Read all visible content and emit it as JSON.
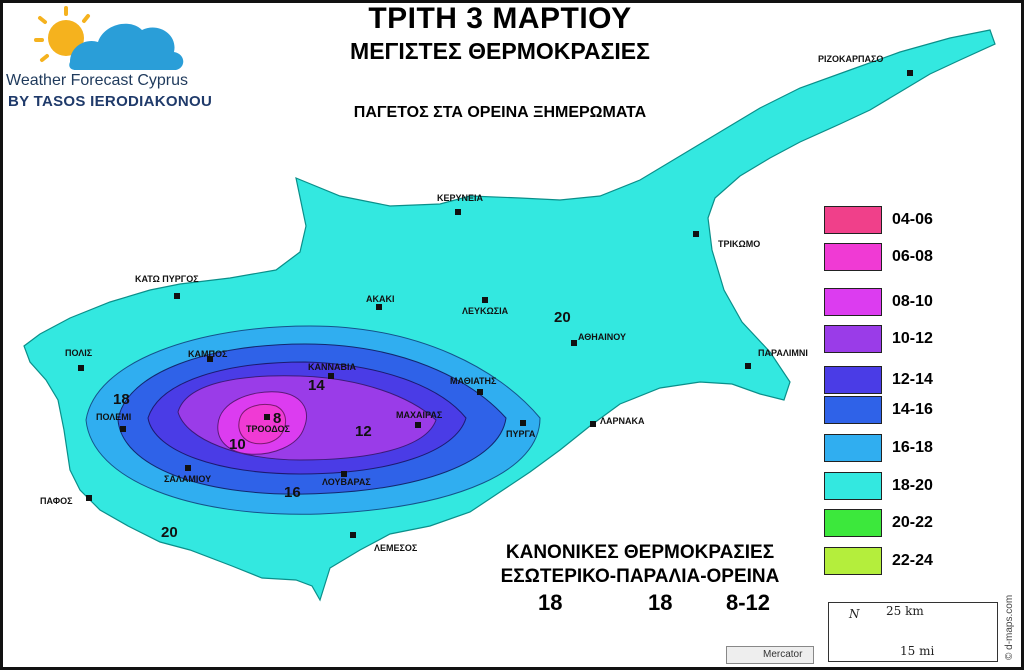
{
  "title": {
    "line1": "ΤΡΙΤΗ 3 ΜΑΡΤΙΟΥ",
    "line2": "ΜΕΓΙΣΤΕΣ ΘΕΡΜΟΚΡΑΣΙΕΣ"
  },
  "subtitle": "ΠΑΓΕΤΟΣ ΣΤΑ ΟΡΕΙΝΑ ΞΗΜΕΡΩΜΑΤΑ",
  "logo": {
    "name": "Weather Forecast Cyprus",
    "byline": "BY TASOS IERODIAKONOU",
    "icon": "sun-cloud-icon"
  },
  "colors": {
    "sea": "#ffffff",
    "land": "#33e8e0"
  },
  "cities": [
    {
      "name": "ΡΙΖΟΚΑΡΠΑΣΟ"
    },
    {
      "name": "ΚΕΡΥΝΕΙΑ"
    },
    {
      "name": "ΤΡΙΚΩΜΟ"
    },
    {
      "name": "ΚΑΤΩ ΠΥΡΓΟΣ"
    },
    {
      "name": "ΑΚΑΚΙ"
    },
    {
      "name": "ΛΕΥΚΩΣΙΑ"
    },
    {
      "name": "ΑΘΗΑΙΝΟΥ"
    },
    {
      "name": "ΠΑΡΑΛΙΜΝΙ"
    },
    {
      "name": "ΠΟΛΙΣ"
    },
    {
      "name": "ΚΑΜΠΟΣ"
    },
    {
      "name": "ΚΑΝΝΑΒΙΑ"
    },
    {
      "name": "ΜΑΘΙΑΤΗΣ"
    },
    {
      "name": "ΠΟΛΕΜΙ"
    },
    {
      "name": "ΤΡΟΟΔΟΣ"
    },
    {
      "name": "ΜΑΧΑΙΡΑΣ"
    },
    {
      "name": "ΛΑΡΝΑΚΑ"
    },
    {
      "name": "ΠΥΡΓΑ"
    },
    {
      "name": "ΣΑΛΑΜΙΟΥ"
    },
    {
      "name": "ΛΟΥΒΑΡΑΣ"
    },
    {
      "name": "ΠΑΦΟΣ"
    },
    {
      "name": "ΛΕΜΕΣΟΣ"
    }
  ],
  "contour_labels": [
    "20",
    "18",
    "14",
    "8",
    "10",
    "12",
    "16",
    "20"
  ],
  "legend": [
    {
      "label": "04-06",
      "color": "#f0408a"
    },
    {
      "label": "06-08",
      "color": "#f03ad4"
    },
    {
      "label": "08-10",
      "color": "#dc3cf0"
    },
    {
      "label": "10-12",
      "color": "#9a3ce8"
    },
    {
      "label": "12-14",
      "color": "#4a3ce6"
    },
    {
      "label": "14-16",
      "color": "#2f62e8"
    },
    {
      "label": "16-18",
      "color": "#30aef0"
    },
    {
      "label": "18-20",
      "color": "#33e8e0"
    },
    {
      "label": "20-22",
      "color": "#3ce83c"
    },
    {
      "label": "22-24",
      "color": "#b4ee3c"
    }
  ],
  "normal": {
    "title": "ΚΑΝΟΝΙΚΕΣ ΘΕΡΜΟΚΡΑΣΙΕΣ",
    "subtitle": "ΕΣΩΤΕΡΙΚΟ-ΠΑΡΑΛΙΑ-ΟΡΕΙΝΑ",
    "values": [
      "18",
      "18",
      "8-12"
    ]
  },
  "scale": {
    "km": "25 km",
    "mi": "15 mi",
    "north": "N"
  },
  "projection": "Mercator",
  "credit": "© d-maps.com"
}
